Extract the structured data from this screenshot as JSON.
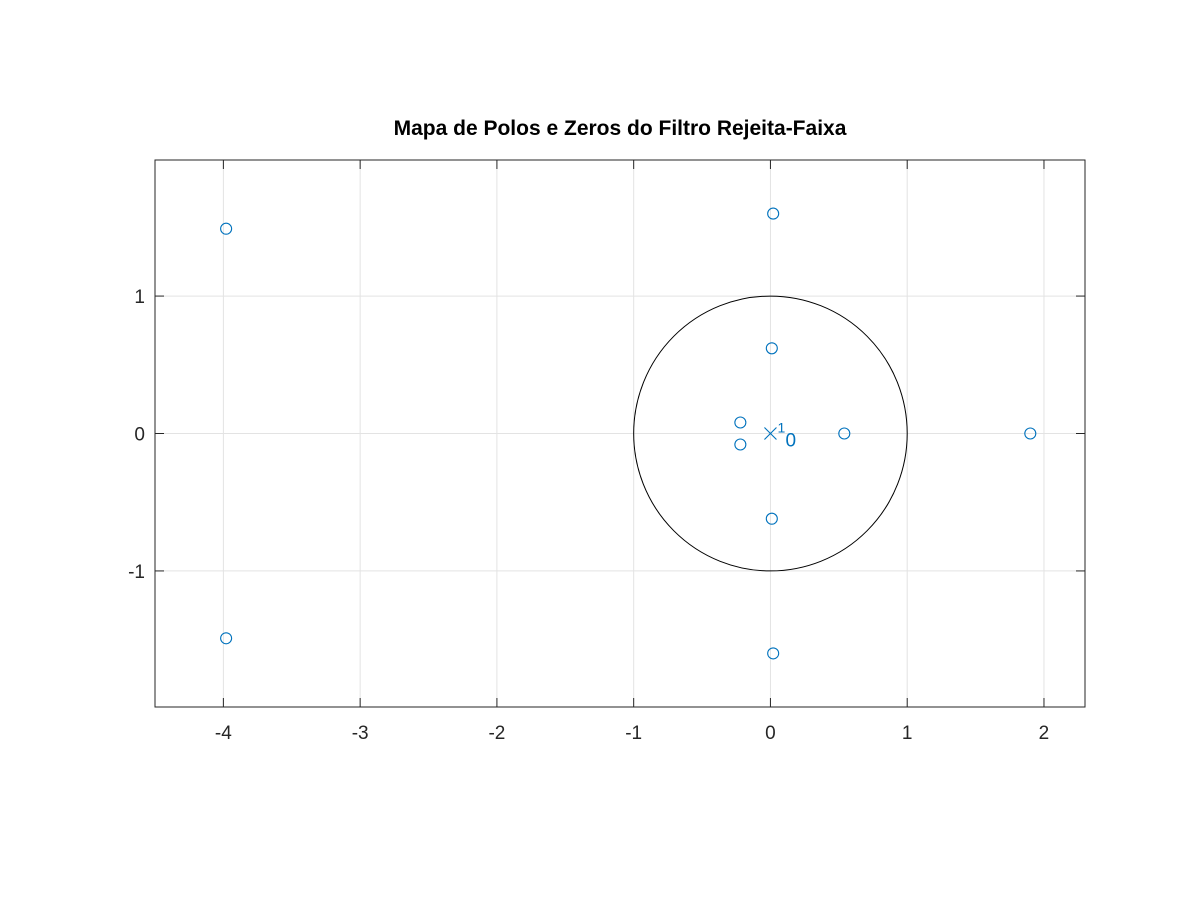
{
  "chart_data": {
    "type": "scatter",
    "title": "Mapa de Polos e Zeros do Filtro Rejeita-Faixa",
    "xlabel": "",
    "ylabel": "",
    "xlim": [
      -4.5,
      2.3
    ],
    "ylim": [
      -1.99,
      1.99
    ],
    "x_ticks": [
      -4,
      -3,
      -2,
      -1,
      0,
      1,
      2
    ],
    "x_tick_labels": [
      "-4",
      "-3",
      "-2",
      "-1",
      "0",
      "1",
      "2"
    ],
    "y_ticks": [
      -1,
      0,
      1
    ],
    "y_tick_labels": [
      "-1",
      "0",
      "1"
    ],
    "grid": true,
    "unit_circle": true,
    "series": [
      {
        "marker": "o",
        "points": [
          {
            "x": -3.98,
            "y": 1.49
          },
          {
            "x": -3.98,
            "y": -1.49
          },
          {
            "x": 0.02,
            "y": 1.6
          },
          {
            "x": 0.01,
            "y": 0.62
          },
          {
            "x": 0.01,
            "y": -0.62
          },
          {
            "x": 0.02,
            "y": -1.6
          },
          {
            "x": -0.22,
            "y": 0.08
          },
          {
            "x": -0.22,
            "y": -0.08
          },
          {
            "x": 0.54,
            "y": 0.0
          },
          {
            "x": 1.9,
            "y": 0.0
          }
        ]
      },
      {
        "marker": "x",
        "points": [
          {
            "x": 0.0,
            "y": 0.0
          }
        ]
      }
    ],
    "annotations": [
      {
        "text": "1",
        "x": 0.0,
        "y": 0.0,
        "size": "small"
      },
      {
        "text": "0",
        "x": 0.0,
        "y": 0.0,
        "size": "large"
      }
    ],
    "colors": {
      "series": "#0072bd",
      "grid": "#e3e3e3",
      "axes": "#262626",
      "unit_circle": "#000000"
    }
  }
}
